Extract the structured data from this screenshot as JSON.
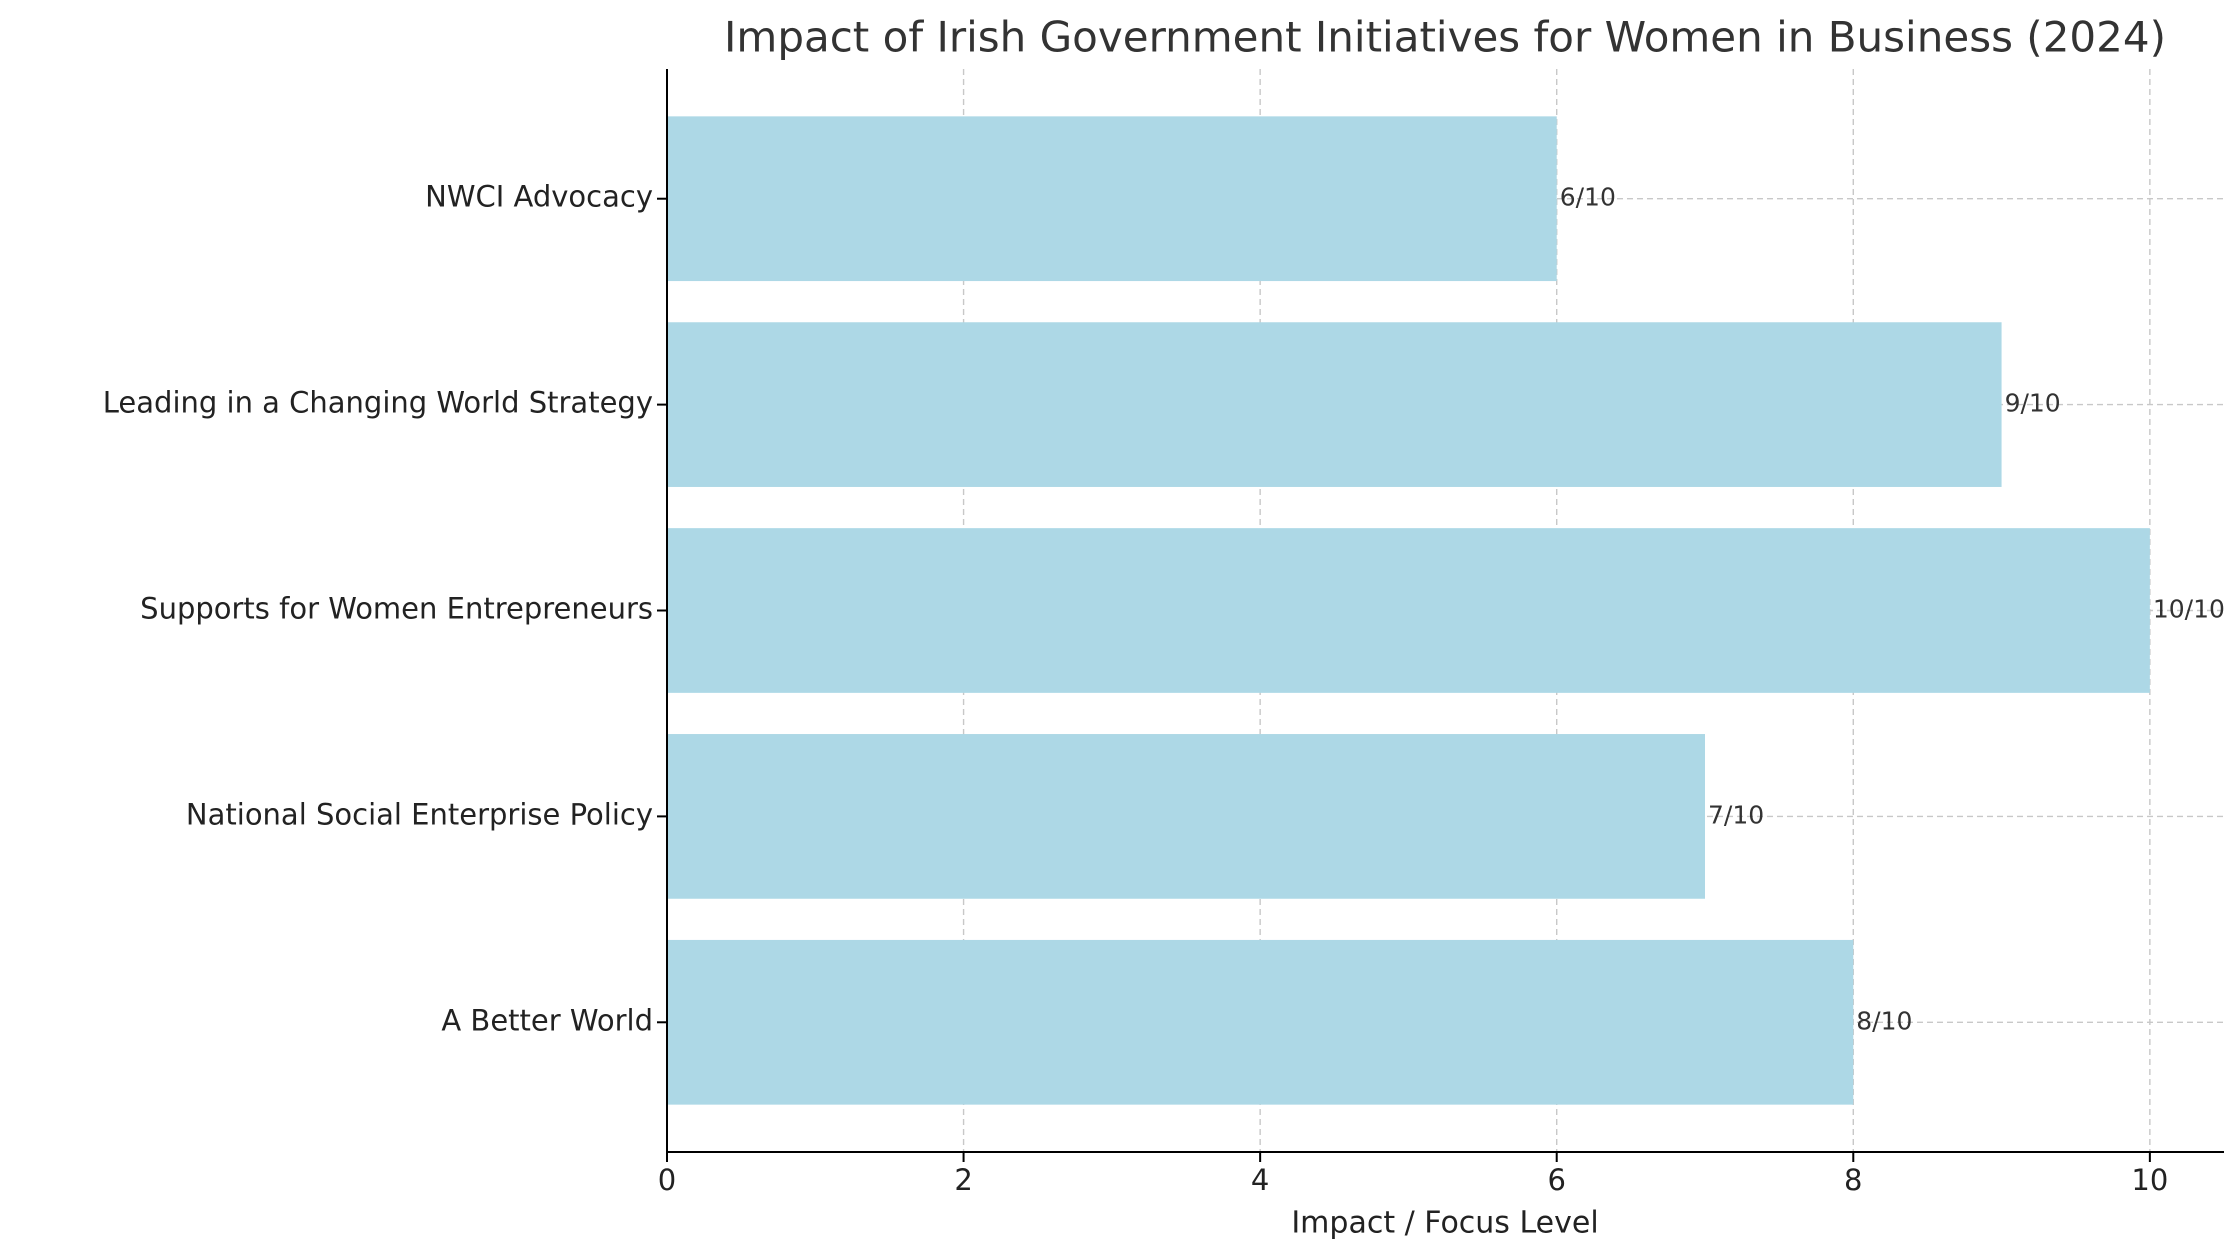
{
  "chart_data": {
    "type": "barh",
    "title": "Impact of Irish Government Initiatives for Women in Business (2024)",
    "x_label": "Impact / Focus Level",
    "categories": [
      "A Better World",
      "National Social Enterprise Policy",
      "Supports for Women Entrepreneurs",
      "Leading in a Changing World Strategy",
      "NWCI Advocacy"
    ],
    "values": [
      8,
      7,
      10,
      9,
      6
    ],
    "value_labels": [
      "8/10",
      "7/10",
      "10/10",
      "9/10",
      "6/10"
    ],
    "color": "#add8e6",
    "xlim": [
      0,
      10.5
    ],
    "xticks": [
      0,
      2,
      4,
      6,
      8,
      10
    ],
    "grid": true
  }
}
